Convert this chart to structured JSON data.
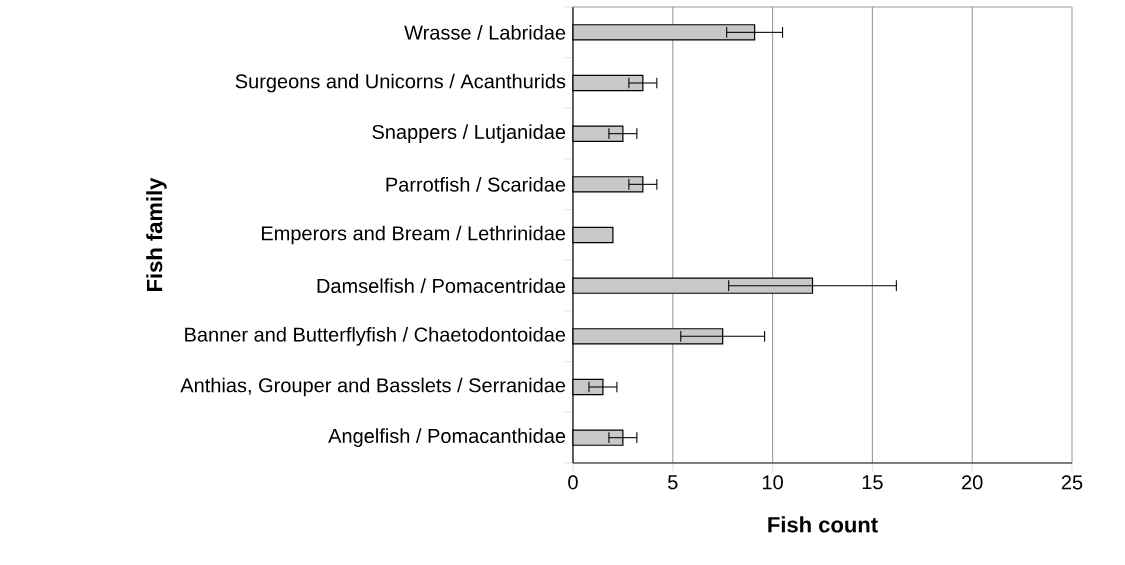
{
  "chart_data": {
    "type": "bar",
    "orientation": "horizontal",
    "xlabel": "Fish count",
    "ylabel": "Fish family",
    "categories": [
      "Wrasse / Labridae",
      "Surgeons and Unicorns / Acanthurids",
      "Snappers / Lutjanidae",
      "Parrotfish / Scaridae",
      "Emperors and Bream / Lethrinidae",
      "Damselfish / Pomacentridae",
      "Banner and Butterflyfish / Chaetodontoidae",
      "Anthias, Grouper and Basslets / Serranidae",
      "Angelfish / Pomacanthidae"
    ],
    "values": [
      9.1,
      3.5,
      2.5,
      3.5,
      2.0,
      12.0,
      7.5,
      1.5,
      2.5
    ],
    "errors": [
      1.4,
      0.7,
      0.7,
      0.7,
      null,
      4.2,
      2.1,
      0.7,
      0.7
    ],
    "color": "#c8c8c8",
    "xlim": [
      0,
      25
    ],
    "xticks": [
      0,
      5,
      10,
      15,
      20,
      25
    ],
    "grid": "x"
  }
}
